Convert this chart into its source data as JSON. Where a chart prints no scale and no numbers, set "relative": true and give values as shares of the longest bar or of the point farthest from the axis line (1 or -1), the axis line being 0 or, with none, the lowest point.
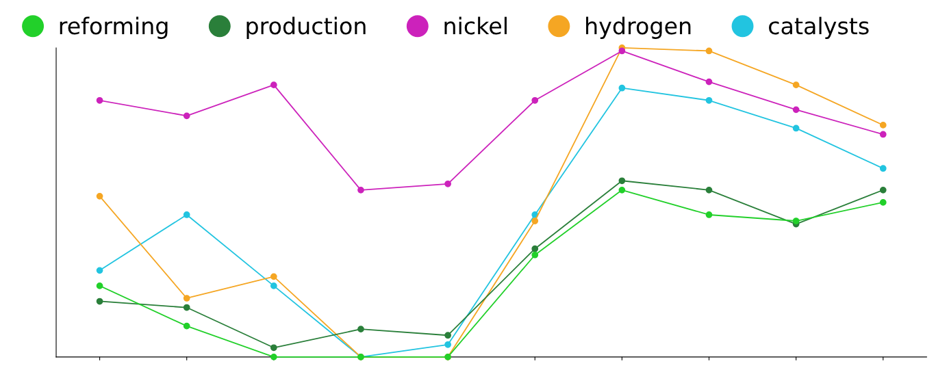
{
  "chart_data": {
    "type": "line",
    "relative": true,
    "categories": [
      null,
      null,
      null,
      null,
      null,
      null,
      null,
      null,
      null,
      null
    ],
    "series": [
      {
        "name": "reforming",
        "color": "#22d02a",
        "values": [
          0.23,
          0.1,
          0.0,
          0.0,
          0.0,
          0.33,
          0.54,
          0.46,
          0.44,
          0.5
        ]
      },
      {
        "name": "production",
        "color": "#2a7f3a",
        "values": [
          0.18,
          0.16,
          0.03,
          0.09,
          0.07,
          0.35,
          0.57,
          0.54,
          0.43,
          0.54
        ]
      },
      {
        "name": "nickel",
        "color": "#cc22bb",
        "values": [
          0.83,
          0.78,
          0.88,
          0.54,
          0.56,
          0.83,
          0.99,
          0.89,
          0.8,
          0.72
        ]
      },
      {
        "name": "hydrogen",
        "color": "#f5a623",
        "values": [
          0.52,
          0.19,
          0.26,
          0.0,
          0.0,
          0.44,
          1.0,
          0.99,
          0.88,
          0.75
        ]
      },
      {
        "name": "catalysts",
        "color": "#22c4e0",
        "values": [
          0.28,
          0.46,
          0.23,
          0.0,
          0.04,
          0.46,
          0.87,
          0.83,
          0.74,
          0.61
        ]
      }
    ],
    "marker": "circle",
    "grid": false,
    "legend": "top"
  }
}
